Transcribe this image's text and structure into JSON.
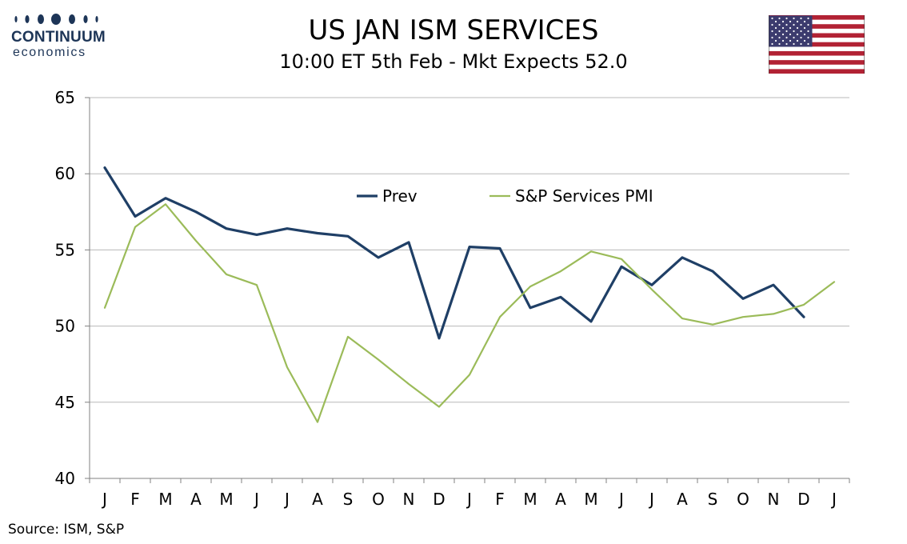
{
  "logo": {
    "main": "CONTINUUM",
    "sub": "economics",
    "icon": "dots-logo"
  },
  "flag": {
    "icon": "us-flag-icon"
  },
  "source": "Source: ISM, S&P",
  "colors": {
    "prev": "#1f3f66",
    "sp": "#9bbb59",
    "grid": "#b8b8b8",
    "axis": "#808080"
  },
  "chart_data": {
    "type": "line",
    "title": "US JAN ISM SERVICES",
    "subtitle": "10:00 ET 5th Feb - Mkt Expects 52.0",
    "categories": [
      "J",
      "F",
      "M",
      "A",
      "M",
      "J",
      "J",
      "A",
      "S",
      "O",
      "N",
      "D",
      "J",
      "F",
      "M",
      "A",
      "M",
      "J",
      "J",
      "A",
      "S",
      "O",
      "N",
      "D",
      "J"
    ],
    "ylim": [
      40,
      65
    ],
    "yticks": [
      40,
      45,
      50,
      55,
      60,
      65
    ],
    "grid": true,
    "legend": "top-center",
    "series": [
      {
        "name": "Prev",
        "color": "#1f3f66",
        "values": [
          60.4,
          57.2,
          58.4,
          57.5,
          56.4,
          56.0,
          56.4,
          56.1,
          55.9,
          54.5,
          55.5,
          49.2,
          55.2,
          55.1,
          51.2,
          51.9,
          50.3,
          53.9,
          52.7,
          54.5,
          53.6,
          51.8,
          52.7,
          50.6,
          null
        ]
      },
      {
        "name": "S&P Services PMI",
        "color": "#9bbb59",
        "values": [
          51.2,
          56.5,
          58.0,
          55.6,
          53.4,
          52.7,
          47.3,
          43.7,
          49.3,
          47.8,
          46.2,
          44.7,
          46.8,
          50.6,
          52.6,
          53.6,
          54.9,
          54.4,
          52.4,
          50.5,
          50.1,
          50.6,
          50.8,
          51.4,
          52.9
        ]
      }
    ]
  }
}
